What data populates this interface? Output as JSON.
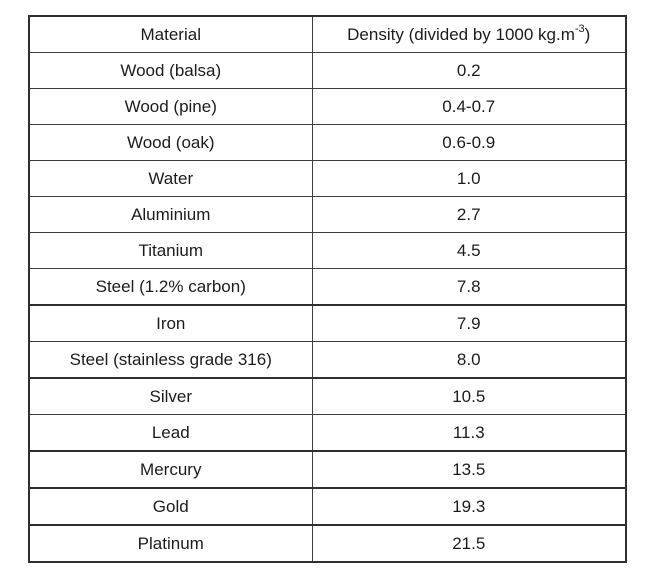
{
  "chart_data": {
    "type": "table",
    "title": "",
    "columns": [
      "Material",
      "Density (divided by 1000 kg.m⁻³)"
    ],
    "rows": [
      [
        "Wood (balsa)",
        "0.2"
      ],
      [
        "Wood (pine)",
        "0.4-0.7"
      ],
      [
        "Wood (oak)",
        "0.6-0.9"
      ],
      [
        "Water",
        "1.0"
      ],
      [
        "Aluminium",
        "2.7"
      ],
      [
        "Titanium",
        "4.5"
      ],
      [
        "Steel (1.2% carbon)",
        "7.8"
      ],
      [
        "Iron",
        "7.9"
      ],
      [
        "Steel (stainless grade 316)",
        "8.0"
      ],
      [
        "Silver",
        "10.5"
      ],
      [
        "Lead",
        "11.3"
      ],
      [
        "Mercury",
        "13.5"
      ],
      [
        "Gold",
        "19.3"
      ],
      [
        "Platinum",
        "21.5"
      ]
    ],
    "layout_hints": {
      "header_row": true,
      "text_align": "center",
      "grid": "all-borders"
    }
  },
  "table": {
    "header": {
      "material": "Material",
      "density_base": "Density (divided by 1000 kg.m",
      "density_sup": "-3",
      "density_close": ")"
    },
    "rows": [
      {
        "material": "Wood (balsa)",
        "density": "0.2"
      },
      {
        "material": "Wood (pine)",
        "density": "0.4-0.7"
      },
      {
        "material": "Wood (oak)",
        "density": "0.6-0.9"
      },
      {
        "material": "Water",
        "density": "1.0"
      },
      {
        "material": "Aluminium",
        "density": "2.7"
      },
      {
        "material": "Titanium",
        "density": "4.5"
      },
      {
        "material": "Steel (1.2% carbon)",
        "density": "7.8"
      },
      {
        "material": "Iron",
        "density": "7.9"
      },
      {
        "material": "Steel (stainless grade 316)",
        "density": "8.0"
      },
      {
        "material": "Silver",
        "density": "10.5"
      },
      {
        "material": "Lead",
        "density": "11.3"
      },
      {
        "material": "Mercury",
        "density": "13.5"
      },
      {
        "material": "Gold",
        "density": "19.3"
      },
      {
        "material": "Platinum",
        "density": "21.5"
      }
    ]
  },
  "colors": {
    "background": "#ffffff",
    "border_outer": "#2f2f2f",
    "border_inner": "#3d3d3d",
    "text": "#1c1c1c"
  }
}
